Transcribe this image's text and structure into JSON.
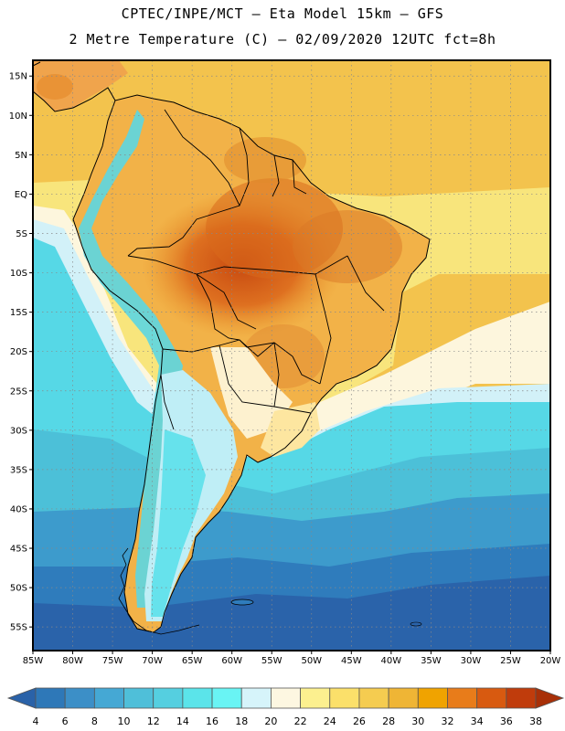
{
  "header": {
    "line1": "CPTEC/INPE/MCT –  Eta Model 15km – GFS",
    "line2": "2 Metre Temperature (C) – 02/09/2020 12UTC fct=8h"
  },
  "map": {
    "lon_range": [
      -85,
      -20
    ],
    "lat_range": [
      -58,
      17
    ],
    "lat_ticks": [
      "15N",
      "10N",
      "5N",
      "EQ",
      "5S",
      "10S",
      "15S",
      "20S",
      "25S",
      "30S",
      "35S",
      "40S",
      "45S",
      "50S",
      "55S"
    ],
    "lat_values": [
      15,
      10,
      5,
      0,
      -5,
      -10,
      -15,
      -20,
      -25,
      -30,
      -35,
      -40,
      -45,
      -50,
      -55
    ],
    "lon_ticks": [
      "85W",
      "80W",
      "75W",
      "70W",
      "65W",
      "60W",
      "55W",
      "50W",
      "45W",
      "40W",
      "35W",
      "30W",
      "25W",
      "20W"
    ],
    "lon_values": [
      -85,
      -80,
      -75,
      -70,
      -65,
      -60,
      -55,
      -50,
      -45,
      -40,
      -35,
      -30,
      -25,
      -20
    ]
  },
  "colorbar": {
    "labels": [
      "4",
      "6",
      "8",
      "10",
      "12",
      "14",
      "16",
      "18",
      "20",
      "22",
      "24",
      "26",
      "28",
      "30",
      "32",
      "34",
      "36",
      "38"
    ],
    "colors": [
      "#2a62a8",
      "#2e78b8",
      "#3c8fc7",
      "#45a8d4",
      "#4fbfd9",
      "#55cfe0",
      "#5be4ea",
      "#69f4f4",
      "#d6f4fa",
      "#fdf7e1",
      "#fcf08f",
      "#fbe06a",
      "#f5cc50",
      "#efb535",
      "#f0a300",
      "#e87c1a",
      "#d85a10",
      "#c03c0c",
      "#a83008"
    ]
  }
}
